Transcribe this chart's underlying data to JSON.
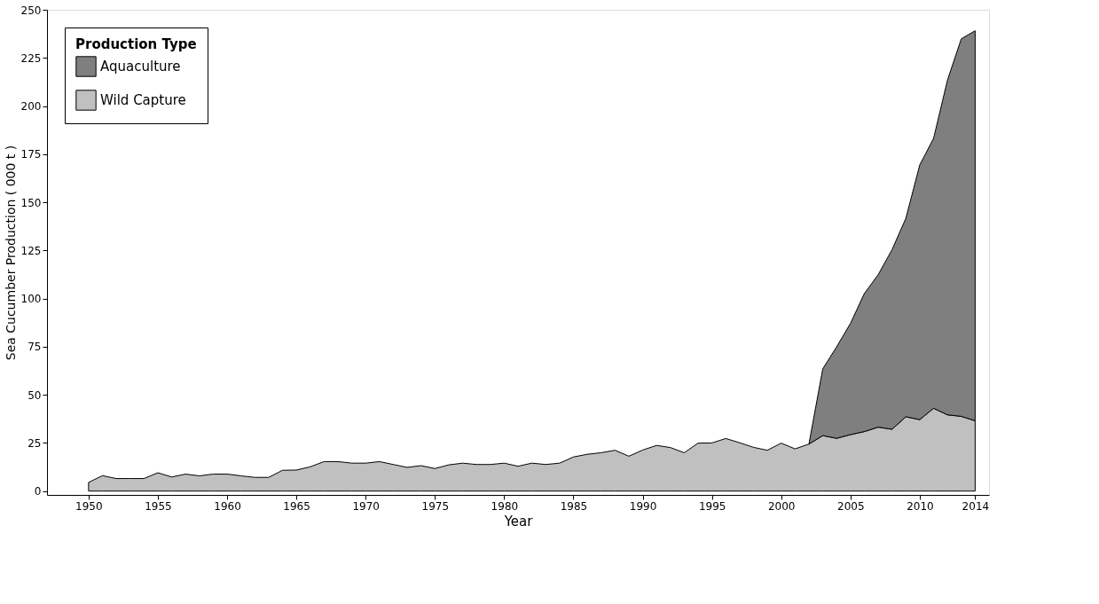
{
  "chart_data": {
    "type": "area",
    "stacked": true,
    "xlabel": "Year",
    "ylabel": "Sea Cucumber Production ( 000 t )",
    "legend_title": "Production Type",
    "legend": "top left",
    "grid": false,
    "x": [
      1950,
      1951,
      1952,
      1953,
      1954,
      1955,
      1956,
      1957,
      1958,
      1959,
      1960,
      1961,
      1962,
      1963,
      1964,
      1965,
      1966,
      1967,
      1968,
      1969,
      1970,
      1971,
      1972,
      1973,
      1974,
      1975,
      1976,
      1977,
      1978,
      1979,
      1980,
      1981,
      1982,
      1983,
      1984,
      1985,
      1986,
      1987,
      1988,
      1989,
      1990,
      1991,
      1992,
      1993,
      1994,
      1995,
      1996,
      1997,
      1998,
      1999,
      2000,
      2001,
      2002,
      2003,
      2004,
      2005,
      2006,
      2007,
      2008,
      2009,
      2010,
      2011,
      2012,
      2013,
      2014
    ],
    "series": [
      {
        "name": "Wild Capture",
        "color": "#c0c0c0",
        "values": [
          4.5,
          8,
          6.5,
          6.5,
          6.5,
          9.5,
          7.3,
          8.8,
          7.9,
          8.8,
          8.8,
          7.9,
          7.1,
          7.1,
          10.8,
          10.9,
          12.6,
          15.3,
          15.3,
          14.5,
          14.5,
          15.3,
          13.8,
          12.3,
          13.2,
          11.7,
          13.6,
          14.5,
          13.8,
          13.8,
          14.5,
          12.9,
          14.5,
          13.8,
          14.5,
          17.7,
          19.1,
          19.9,
          21.2,
          18.1,
          21.3,
          23.7,
          22.6,
          19.9,
          24.9,
          25,
          27.3,
          25.1,
          22.7,
          21.2,
          24.9,
          21.9,
          24.4,
          28.8,
          27.4,
          29.3,
          30.9,
          33.2,
          32.1,
          38.6,
          37.1,
          43,
          39.6,
          38.8,
          36.5
        ]
      },
      {
        "name": "Aquaculture",
        "color": "#7f7f7f",
        "values": [
          null,
          null,
          null,
          null,
          null,
          null,
          null,
          null,
          null,
          null,
          null,
          null,
          null,
          null,
          null,
          null,
          null,
          null,
          null,
          null,
          null,
          null,
          null,
          null,
          null,
          null,
          null,
          null,
          null,
          null,
          null,
          null,
          null,
          null,
          null,
          null,
          null,
          null,
          null,
          null,
          null,
          null,
          null,
          null,
          null,
          null,
          null,
          null,
          null,
          null,
          null,
          null,
          0,
          34.7,
          47.5,
          57.8,
          71.7,
          79.2,
          93.3,
          103.1,
          132.3,
          140.2,
          173.8,
          196.1,
          202.6
        ]
      }
    ],
    "xlim": [
      1947,
      2015
    ],
    "xticks": [
      1950,
      1955,
      1960,
      1965,
      1970,
      1975,
      1980,
      1985,
      1990,
      1995,
      2000,
      2005,
      2010,
      2014
    ],
    "ylim": [
      -2,
      250
    ],
    "yticks": [
      0,
      25,
      50,
      75,
      100,
      125,
      150,
      175,
      200,
      225,
      250
    ]
  }
}
